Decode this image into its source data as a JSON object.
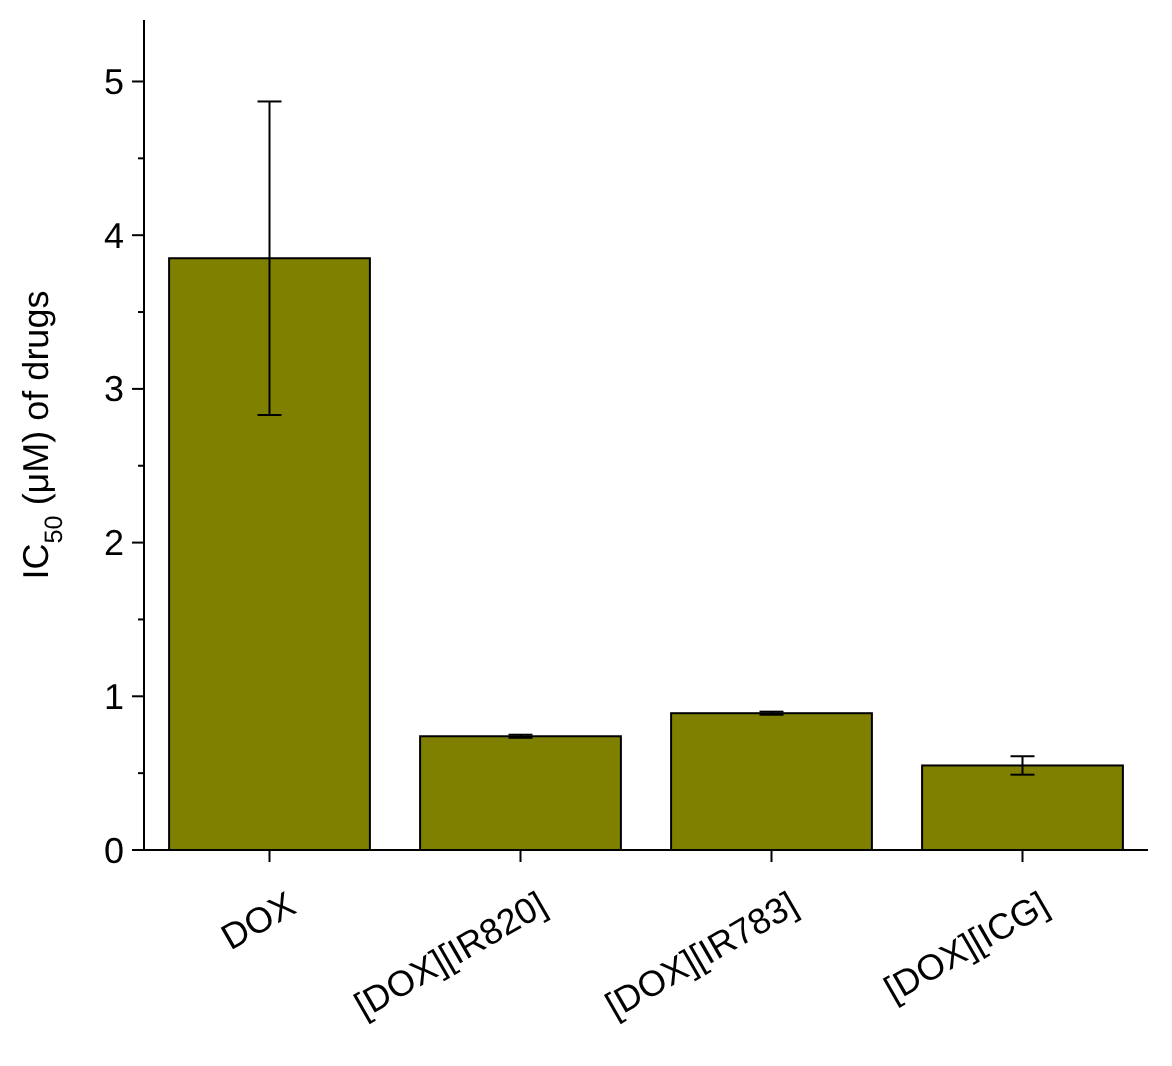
{
  "chart_data": {
    "type": "bar",
    "ylabel": "IC$_{50}$ (μM) of drugs",
    "categories": [
      "DOX",
      "[DOX][IR820]",
      "[DOX][IR783]",
      "[DOX][ICG]"
    ],
    "values": [
      3.85,
      0.74,
      0.89,
      0.55
    ],
    "errors": [
      1.02,
      0.01,
      0.01,
      0.06
    ],
    "color": "#808000",
    "ylim": [
      0,
      5.4
    ],
    "yticks": [
      0,
      {
        "value": 0.5,
        "label": null
      },
      1,
      {
        "value": 1.5,
        "label": null
      },
      2,
      {
        "value": 2.5,
        "label": null
      },
      3,
      {
        "value": 3.5,
        "label": null
      },
      4,
      {
        "value": 4.5,
        "label": null
      },
      5
    ],
    "grid": false
  }
}
